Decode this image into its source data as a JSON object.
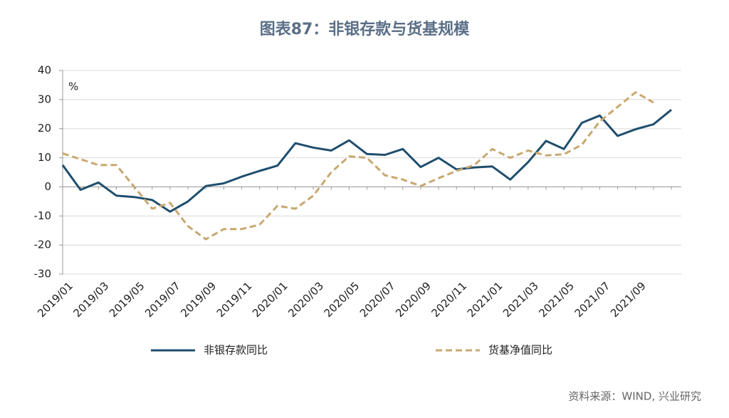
{
  "chart_data": {
    "type": "line",
    "title": "图表87：非银存款与货基规模",
    "unit_label": "%",
    "source": "资料来源：WIND, 兴业研究",
    "categories": [
      "2019/01",
      null,
      "2019/03",
      null,
      "2019/05",
      null,
      "2019/07",
      null,
      "2019/09",
      null,
      "2019/11",
      null,
      "2020/01",
      null,
      "2020/03",
      null,
      "2020/05",
      null,
      "2020/07",
      null,
      "2020/09",
      null,
      "2020/11",
      null,
      "2021/01",
      null,
      "2021/03",
      null,
      "2021/05",
      null,
      "2021/07",
      null,
      "2021/09",
      null,
      null
    ],
    "series": [
      {
        "name": "非银存款同比",
        "color": "#1f4e6e",
        "dash": false,
        "values": [
          7.5,
          -1,
          1.5,
          -3,
          -3.5,
          -4.5,
          -8.5,
          -5,
          0.3,
          1.2,
          3.5,
          5.5,
          7.3,
          15,
          13.5,
          12.5,
          16,
          11.3,
          11,
          13,
          6.8,
          10,
          6,
          6.7,
          7,
          2.5,
          8.5,
          15.8,
          13,
          22,
          24.5,
          17.5,
          19.8,
          21.5,
          26.5
        ]
      },
      {
        "name": "货基净值同比",
        "color": "#c8a870",
        "dash": true,
        "values": [
          11.5,
          9.5,
          7.5,
          7.5,
          0,
          -7.5,
          -5.5,
          -13.5,
          -18,
          -14.5,
          -14.5,
          -13,
          -6.5,
          -7.5,
          -3,
          5,
          10.5,
          10,
          4,
          2.5,
          0.3,
          3,
          5.5,
          7.5,
          13,
          10,
          12.5,
          10.8,
          11.2,
          14.5,
          22.5,
          27.5,
          32.5,
          29,
          null
        ]
      }
    ],
    "ylim": [
      -30,
      40
    ],
    "yticks": [
      -30,
      -20,
      -10,
      0,
      10,
      20,
      30,
      40
    ],
    "grid": true
  }
}
